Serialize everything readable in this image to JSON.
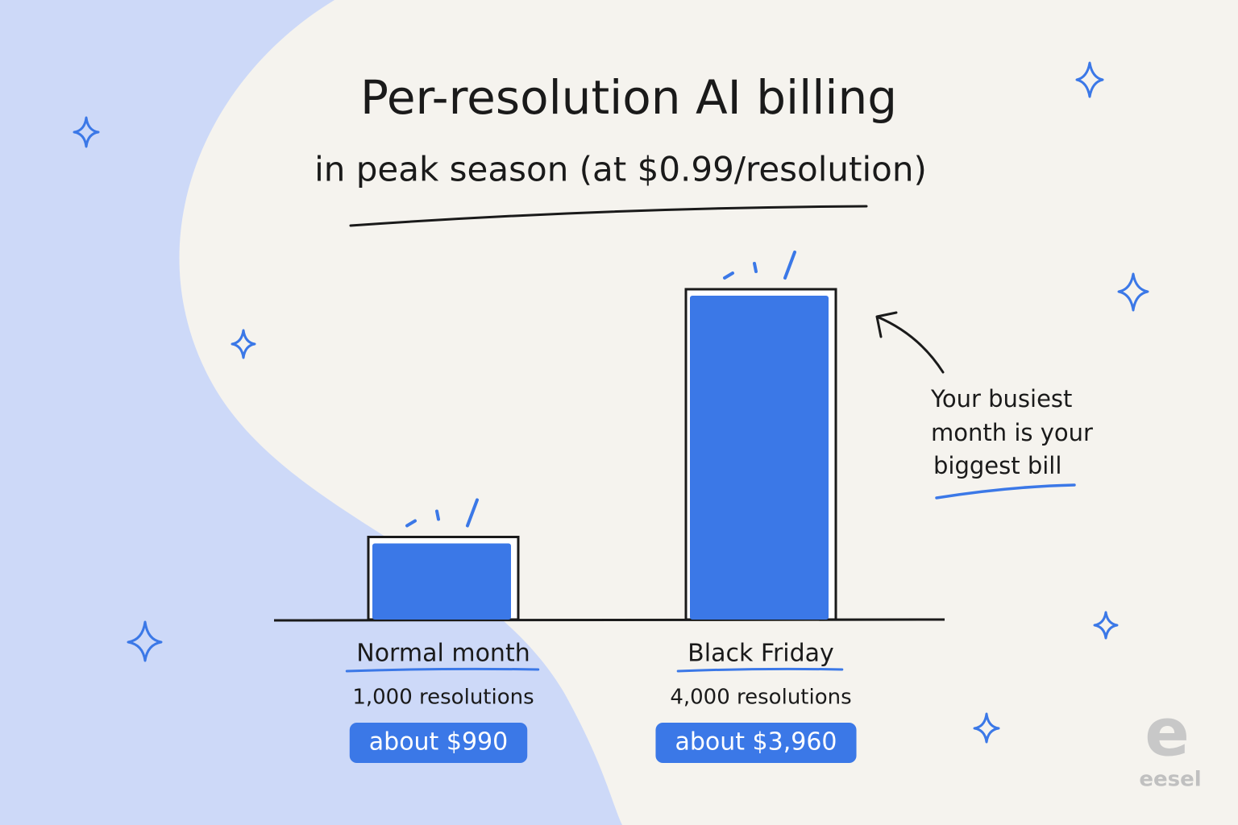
{
  "chart_data": {
    "type": "bar",
    "title": "Per-resolution AI billing",
    "subtitle": "in peak season (at $0.99/resolution)",
    "categories": [
      "Normal month",
      "Black Friday"
    ],
    "category_notes": [
      "1,000 resolutions",
      "4,000 resolutions"
    ],
    "values": [
      990,
      3960
    ],
    "value_labels": [
      "about $990",
      "about $3,960"
    ],
    "color": "#3b78e7",
    "annotation": [
      "Your busiest",
      "month is your",
      "biggest bill"
    ]
  },
  "brand": {
    "mark": "e",
    "name": "eesel"
  }
}
